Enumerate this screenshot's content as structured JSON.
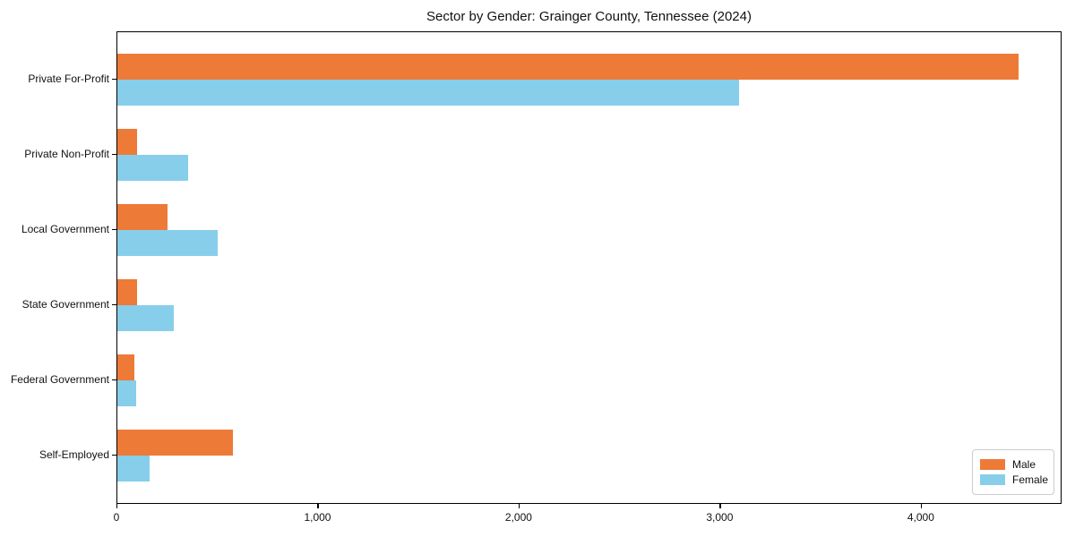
{
  "chart_data": {
    "type": "bar",
    "orientation": "horizontal",
    "title": "Sector by Gender: Grainger County, Tennessee (2024)",
    "categories": [
      "Private For-Profit",
      "Private Non-Profit",
      "Local Government",
      "State Government",
      "Federal Government",
      "Self-Employed"
    ],
    "series": [
      {
        "name": "Male",
        "color": "#EE7A38",
        "values": [
          4480,
          100,
          250,
          100,
          85,
          575
        ]
      },
      {
        "name": "Female",
        "color": "#87CEEB",
        "values": [
          3090,
          350,
          500,
          280,
          95,
          160
        ]
      }
    ],
    "xlabel": "",
    "ylabel": "",
    "xlim": [
      0,
      4700
    ],
    "xtick_values": [
      0,
      1000,
      2000,
      3000,
      4000
    ],
    "xtick_labels": [
      "0",
      "1,000",
      "2,000",
      "3,000",
      "4,000"
    ],
    "grid": false,
    "legend_position": "lower right",
    "frame_color": "#000000",
    "background_color": "#ffffff"
  }
}
